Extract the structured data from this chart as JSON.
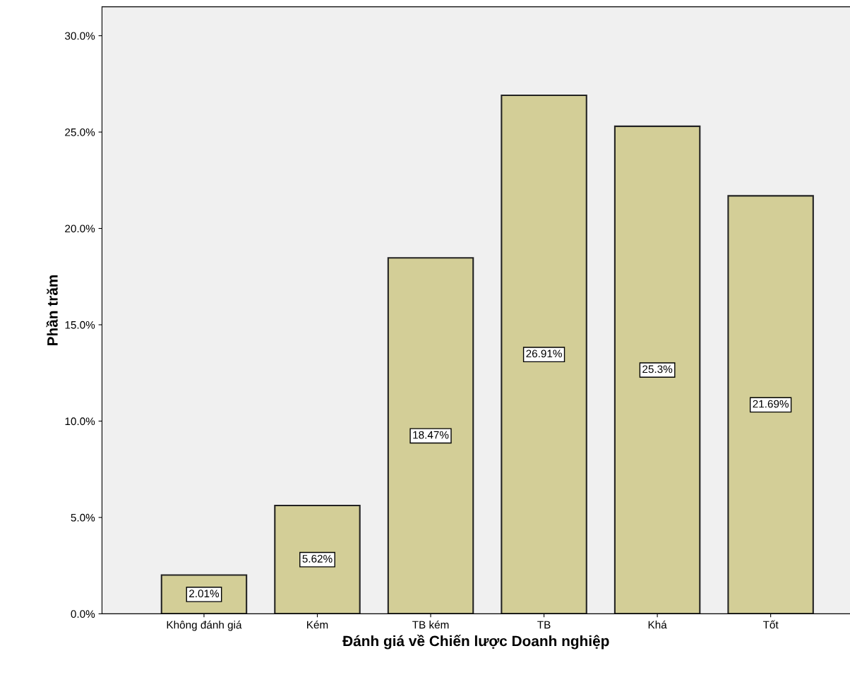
{
  "chart_data": {
    "type": "bar",
    "xlabel": "Đánh giá về Chiến lược Doanh nghiệp",
    "ylabel": "Phần trăm",
    "categories": [
      "Không đánh giá",
      "Kém",
      "TB kém",
      "TB",
      "Khá",
      "Tốt"
    ],
    "values": [
      2.01,
      5.62,
      18.47,
      26.91,
      25.3,
      21.69
    ],
    "value_labels": [
      "2.01%",
      "5.62%",
      "18.47%",
      "26.91%",
      "25.3%",
      "21.69%"
    ],
    "color": "#d3ce97",
    "ylim": [
      0,
      31.5
    ],
    "yticks": [
      {
        "value": 0,
        "label": "0.0%"
      },
      {
        "value": 5,
        "label": "5.0%"
      },
      {
        "value": 10,
        "label": "10.0%"
      },
      {
        "value": 15,
        "label": "15.0%"
      },
      {
        "value": 20,
        "label": "20.0%"
      },
      {
        "value": 25,
        "label": "25.0%"
      },
      {
        "value": 30,
        "label": "30.0%"
      }
    ],
    "grid": false
  }
}
